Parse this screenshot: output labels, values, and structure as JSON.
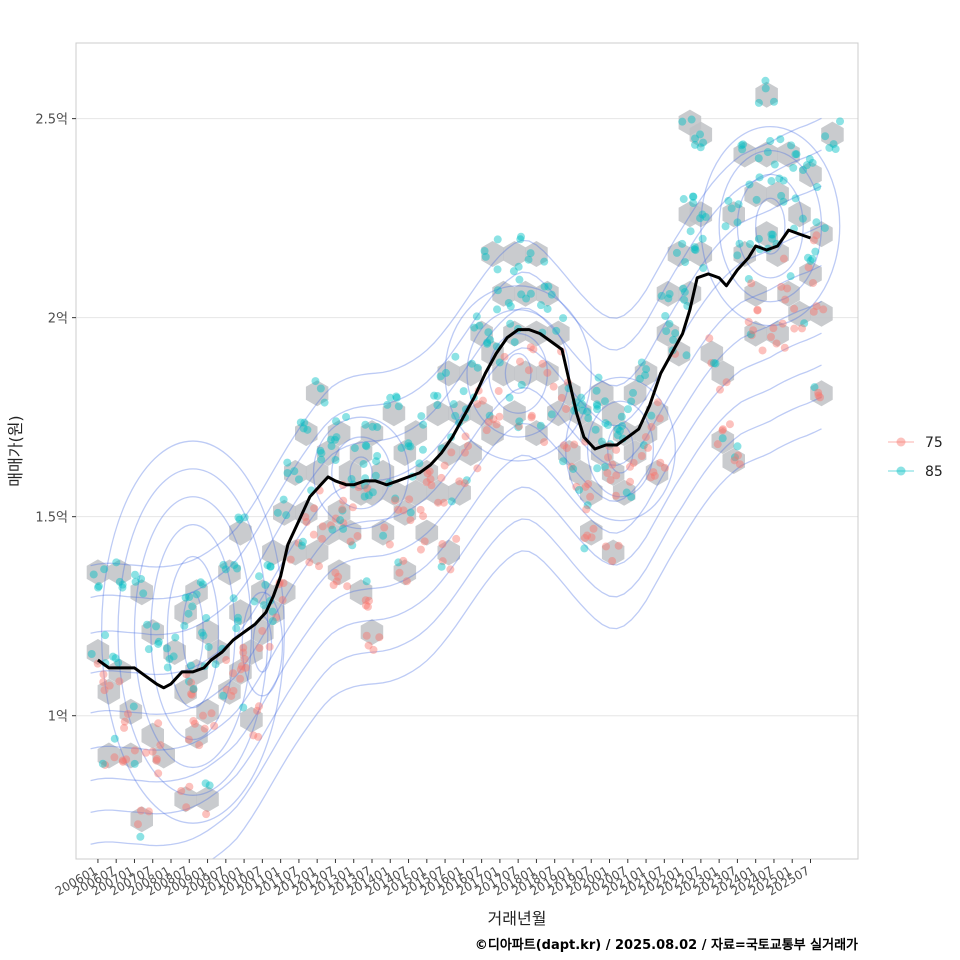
{
  "chart_data": {
    "type": "scatter",
    "xlabel": "거래년월",
    "ylabel": "매매가(원)",
    "x_ticks": [
      "200601",
      "200607",
      "200701",
      "200707",
      "200801",
      "200807",
      "200901",
      "200907",
      "201001",
      "201007",
      "201101",
      "201107",
      "201201",
      "201207",
      "201301",
      "201307",
      "201401",
      "201407",
      "201501",
      "201507",
      "201601",
      "201607",
      "201701",
      "201707",
      "201801",
      "201807",
      "201901",
      "201907",
      "202001",
      "202007",
      "202101",
      "202107",
      "202201",
      "202207",
      "202301",
      "202307",
      "202401",
      "202407",
      "202501",
      "202507"
    ],
    "y_ticks": [
      {
        "value": 1.0,
        "label": "1억"
      },
      {
        "value": 1.5,
        "label": "1.5억"
      },
      {
        "value": 2.0,
        "label": "2억"
      },
      {
        "value": 2.5,
        "label": "2.5억"
      }
    ],
    "ylim": [
      0.64,
      2.69
    ],
    "xlim": [
      2005.4,
      2026.8
    ],
    "grid": true,
    "legend": {
      "position": "right",
      "entries": [
        {
          "name": "75",
          "color": "#F8766D"
        },
        {
          "name": "85",
          "color": "#00BFC4"
        }
      ]
    },
    "trend_line": {
      "color": "#000000",
      "points": [
        [
          2006.0,
          1.14
        ],
        [
          2006.3,
          1.12
        ],
        [
          2006.7,
          1.12
        ],
        [
          2007.0,
          1.12
        ],
        [
          2007.3,
          1.1
        ],
        [
          2007.6,
          1.08
        ],
        [
          2007.8,
          1.07
        ],
        [
          2008.0,
          1.08
        ],
        [
          2008.3,
          1.11
        ],
        [
          2008.6,
          1.11
        ],
        [
          2008.9,
          1.12
        ],
        [
          2009.1,
          1.14
        ],
        [
          2009.4,
          1.16
        ],
        [
          2009.7,
          1.19
        ],
        [
          2010.0,
          1.21
        ],
        [
          2010.3,
          1.23
        ],
        [
          2010.6,
          1.26
        ],
        [
          2010.8,
          1.3
        ],
        [
          2011.0,
          1.35
        ],
        [
          2011.2,
          1.43
        ],
        [
          2011.5,
          1.49
        ],
        [
          2011.8,
          1.55
        ],
        [
          2012.1,
          1.58
        ],
        [
          2012.3,
          1.6
        ],
        [
          2012.5,
          1.59
        ],
        [
          2012.8,
          1.58
        ],
        [
          2013.0,
          1.58
        ],
        [
          2013.3,
          1.59
        ],
        [
          2013.6,
          1.59
        ],
        [
          2013.9,
          1.58
        ],
        [
          2014.2,
          1.59
        ],
        [
          2014.5,
          1.6
        ],
        [
          2014.8,
          1.61
        ],
        [
          2015.1,
          1.63
        ],
        [
          2015.4,
          1.66
        ],
        [
          2015.7,
          1.7
        ],
        [
          2016.0,
          1.75
        ],
        [
          2016.3,
          1.8
        ],
        [
          2016.6,
          1.86
        ],
        [
          2016.9,
          1.91
        ],
        [
          2017.2,
          1.95
        ],
        [
          2017.5,
          1.97
        ],
        [
          2017.8,
          1.97
        ],
        [
          2018.1,
          1.96
        ],
        [
          2018.4,
          1.94
        ],
        [
          2018.7,
          1.92
        ],
        [
          2018.9,
          1.84
        ],
        [
          2019.1,
          1.76
        ],
        [
          2019.3,
          1.7
        ],
        [
          2019.6,
          1.67
        ],
        [
          2019.9,
          1.68
        ],
        [
          2020.2,
          1.68
        ],
        [
          2020.5,
          1.7
        ],
        [
          2020.8,
          1.72
        ],
        [
          2021.1,
          1.78
        ],
        [
          2021.4,
          1.86
        ],
        [
          2021.7,
          1.91
        ],
        [
          2022.0,
          1.96
        ],
        [
          2022.2,
          2.02
        ],
        [
          2022.4,
          2.1
        ],
        [
          2022.7,
          2.11
        ],
        [
          2023.0,
          2.1
        ],
        [
          2023.2,
          2.08
        ],
        [
          2023.5,
          2.12
        ],
        [
          2023.8,
          2.15
        ],
        [
          2024.0,
          2.18
        ],
        [
          2024.3,
          2.17
        ],
        [
          2024.6,
          2.18
        ],
        [
          2024.9,
          2.22
        ],
        [
          2025.2,
          2.21
        ],
        [
          2025.5,
          2.2
        ]
      ]
    },
    "density_contours": {
      "color": "#4169E1",
      "centers": [
        {
          "x": 2008.6,
          "y": 1.21,
          "levels": [
            [
              0.28,
              0.1
            ],
            [
              0.7,
              0.19
            ],
            [
              1.15,
              0.27
            ],
            [
              1.6,
              0.34
            ],
            [
              2.05,
              0.41
            ],
            [
              2.5,
              0.48
            ]
          ]
        },
        {
          "x": 2010.5,
          "y": 1.18,
          "levels": [
            [
              0.25,
              0.07
            ],
            [
              0.55,
              0.13
            ]
          ]
        },
        {
          "x": 2013.2,
          "y": 1.61,
          "levels": [
            [
              0.3,
              0.04
            ],
            [
              0.8,
              0.09
            ],
            [
              1.3,
              0.14
            ]
          ]
        },
        {
          "x": 2017.5,
          "y": 1.86,
          "levels": [
            [
              0.35,
              0.05
            ],
            [
              0.8,
              0.1
            ],
            [
              1.4,
              0.16
            ],
            [
              2.0,
              0.22
            ]
          ]
        },
        {
          "x": 2020.3,
          "y": 1.67,
          "levels": [
            [
              0.35,
              0.06
            ],
            [
              0.9,
              0.12
            ],
            [
              1.5,
              0.18
            ]
          ]
        },
        {
          "x": 2024.4,
          "y": 2.23,
          "levels": [
            [
              0.4,
              0.07
            ],
            [
              0.9,
              0.13
            ],
            [
              1.4,
              0.19
            ],
            [
              1.9,
              0.25
            ]
          ]
        }
      ],
      "bands": [
        0.0,
        -0.1,
        -0.19,
        -0.27,
        -0.35,
        -0.43,
        -0.51,
        0.1,
        0.19,
        0.27
      ]
    },
    "hexbin": {
      "color": "#BFC2C6",
      "cells": [
        [
          2006.0,
          1.36
        ],
        [
          2006.6,
          1.36
        ],
        [
          2006.0,
          1.16
        ],
        [
          2006.3,
          1.06
        ],
        [
          2006.6,
          1.11
        ],
        [
          2006.9,
          1.01
        ],
        [
          2006.3,
          0.9
        ],
        [
          2006.9,
          0.9
        ],
        [
          2007.2,
          1.31
        ],
        [
          2007.5,
          1.21
        ],
        [
          2007.5,
          0.95
        ],
        [
          2007.8,
          0.9
        ],
        [
          2007.2,
          0.74
        ],
        [
          2008.1,
          1.16
        ],
        [
          2008.4,
          1.26
        ],
        [
          2008.4,
          1.06
        ],
        [
          2008.7,
          1.31
        ],
        [
          2008.7,
          1.11
        ],
        [
          2008.7,
          0.95
        ],
        [
          2009.0,
          1.21
        ],
        [
          2009.0,
          1.01
        ],
        [
          2008.4,
          0.79
        ],
        [
          2009.0,
          0.79
        ],
        [
          2009.3,
          1.16
        ],
        [
          2009.6,
          1.36
        ],
        [
          2009.6,
          1.06
        ],
        [
          2009.9,
          1.46
        ],
        [
          2009.9,
          1.26
        ],
        [
          2009.9,
          1.11
        ],
        [
          2010.2,
          1.16
        ],
        [
          2010.2,
          0.99
        ],
        [
          2010.5,
          1.31
        ],
        [
          2010.5,
          1.21
        ],
        [
          2010.8,
          1.41
        ],
        [
          2010.8,
          1.26
        ],
        [
          2011.1,
          1.51
        ],
        [
          2011.1,
          1.31
        ],
        [
          2011.4,
          1.61
        ],
        [
          2011.4,
          1.41
        ],
        [
          2011.7,
          1.71
        ],
        [
          2011.7,
          1.51
        ],
        [
          2012.0,
          1.81
        ],
        [
          2012.0,
          1.61
        ],
        [
          2012.0,
          1.41
        ],
        [
          2012.3,
          1.66
        ],
        [
          2012.3,
          1.46
        ],
        [
          2012.6,
          1.71
        ],
        [
          2012.6,
          1.51
        ],
        [
          2012.6,
          1.36
        ],
        [
          2012.9,
          1.61
        ],
        [
          2012.9,
          1.46
        ],
        [
          2013.2,
          1.66
        ],
        [
          2013.2,
          1.56
        ],
        [
          2013.2,
          1.31
        ],
        [
          2013.5,
          1.71
        ],
        [
          2013.5,
          1.56
        ],
        [
          2013.5,
          1.21
        ],
        [
          2013.8,
          1.61
        ],
        [
          2013.8,
          1.46
        ],
        [
          2014.1,
          1.76
        ],
        [
          2014.1,
          1.56
        ],
        [
          2014.4,
          1.66
        ],
        [
          2014.4,
          1.51
        ],
        [
          2014.4,
          1.36
        ],
        [
          2014.7,
          1.71
        ],
        [
          2014.7,
          1.56
        ],
        [
          2015.0,
          1.61
        ],
        [
          2015.0,
          1.46
        ],
        [
          2015.3,
          1.76
        ],
        [
          2015.3,
          1.56
        ],
        [
          2015.6,
          1.86
        ],
        [
          2015.6,
          1.66
        ],
        [
          2015.6,
          1.41
        ],
        [
          2015.9,
          1.76
        ],
        [
          2015.9,
          1.56
        ],
        [
          2016.2,
          1.86
        ],
        [
          2016.2,
          1.66
        ],
        [
          2016.5,
          1.96
        ],
        [
          2016.5,
          1.76
        ],
        [
          2016.8,
          1.91
        ],
        [
          2016.8,
          1.71
        ],
        [
          2016.8,
          2.16
        ],
        [
          2017.1,
          2.06
        ],
        [
          2017.1,
          1.86
        ],
        [
          2017.4,
          2.16
        ],
        [
          2017.4,
          1.96
        ],
        [
          2017.4,
          1.76
        ],
        [
          2017.7,
          2.06
        ],
        [
          2017.7,
          1.86
        ],
        [
          2018.0,
          2.16
        ],
        [
          2018.0,
          1.96
        ],
        [
          2018.0,
          1.71
        ],
        [
          2018.3,
          2.06
        ],
        [
          2018.3,
          1.86
        ],
        [
          2018.6,
          1.96
        ],
        [
          2018.6,
          1.76
        ],
        [
          2018.9,
          1.81
        ],
        [
          2018.9,
          1.66
        ],
        [
          2019.2,
          1.76
        ],
        [
          2019.2,
          1.61
        ],
        [
          2019.5,
          1.71
        ],
        [
          2019.5,
          1.56
        ],
        [
          2019.5,
          1.46
        ],
        [
          2019.8,
          1.81
        ],
        [
          2019.8,
          1.66
        ],
        [
          2020.1,
          1.76
        ],
        [
          2020.1,
          1.61
        ],
        [
          2020.1,
          1.41
        ],
        [
          2020.4,
          1.71
        ],
        [
          2020.4,
          1.56
        ],
        [
          2020.7,
          1.81
        ],
        [
          2020.7,
          1.66
        ],
        [
          2021.0,
          1.86
        ],
        [
          2021.0,
          1.71
        ],
        [
          2021.3,
          1.76
        ],
        [
          2021.3,
          1.61
        ],
        [
          2021.6,
          1.96
        ],
        [
          2021.6,
          2.06
        ],
        [
          2021.9,
          1.91
        ],
        [
          2021.9,
          2.16
        ],
        [
          2022.2,
          2.06
        ],
        [
          2022.2,
          2.26
        ],
        [
          2022.2,
          2.49
        ],
        [
          2022.5,
          2.16
        ],
        [
          2022.5,
          2.26
        ],
        [
          2022.5,
          2.46
        ],
        [
          2022.8,
          1.91
        ],
        [
          2023.1,
          1.86
        ],
        [
          2023.1,
          1.69
        ],
        [
          2023.4,
          1.64
        ],
        [
          2023.4,
          2.26
        ],
        [
          2023.7,
          2.16
        ],
        [
          2023.7,
          2.41
        ],
        [
          2024.0,
          2.31
        ],
        [
          2024.0,
          2.06
        ],
        [
          2024.0,
          1.96
        ],
        [
          2024.3,
          2.21
        ],
        [
          2024.3,
          2.41
        ],
        [
          2024.3,
          2.56
        ],
        [
          2024.6,
          2.31
        ],
        [
          2024.6,
          2.16
        ],
        [
          2024.6,
          1.96
        ],
        [
          2024.9,
          2.41
        ],
        [
          2024.9,
          2.06
        ],
        [
          2025.2,
          2.26
        ],
        [
          2025.2,
          2.01
        ],
        [
          2025.5,
          2.36
        ],
        [
          2025.5,
          2.11
        ],
        [
          2025.8,
          2.21
        ],
        [
          2025.8,
          2.01
        ],
        [
          2025.8,
          1.81
        ],
        [
          2026.1,
          2.46
        ]
      ]
    },
    "scatter_summary": "point clouds follow the hexbin cells; red series '75' and cyan series '85'"
  },
  "footer": "©디아파트(dapt.kr) / 2025.08.02 / 자료=국토교통부 실거래가"
}
